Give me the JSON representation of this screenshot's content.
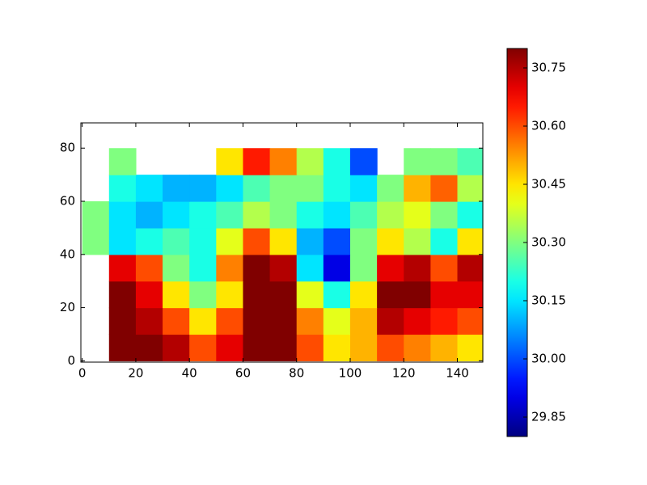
{
  "chart_data": {
    "type": "heatmap",
    "colormap": "jet",
    "x": [
      5,
      15,
      25,
      35,
      45,
      55,
      65,
      75,
      85,
      95,
      105,
      115,
      125,
      135,
      145
    ],
    "y": [
      5,
      15,
      25,
      35,
      45,
      55,
      65,
      75,
      85
    ],
    "z": [
      [
        null,
        30.8,
        30.8,
        30.75,
        30.6,
        30.7,
        30.8,
        30.8,
        30.6,
        30.45,
        30.5,
        30.6,
        30.55,
        30.5,
        30.45
      ],
      [
        null,
        30.8,
        30.75,
        30.6,
        30.45,
        30.6,
        30.8,
        30.8,
        30.55,
        30.4,
        30.5,
        30.75,
        30.7,
        30.65,
        30.6
      ],
      [
        null,
        30.8,
        30.7,
        30.45,
        30.3,
        30.45,
        30.8,
        30.8,
        30.4,
        30.2,
        30.45,
        30.8,
        30.8,
        30.7,
        30.7
      ],
      [
        null,
        30.7,
        30.6,
        30.3,
        30.2,
        30.55,
        30.8,
        30.75,
        30.15,
        29.9,
        30.3,
        30.7,
        30.75,
        30.6,
        30.75
      ],
      [
        30.3,
        30.15,
        30.2,
        30.25,
        30.2,
        30.4,
        30.6,
        30.45,
        30.1,
        30.0,
        30.3,
        30.45,
        30.35,
        30.2,
        30.45
      ],
      [
        30.3,
        30.15,
        30.1,
        30.15,
        30.2,
        30.25,
        30.35,
        30.3,
        30.2,
        30.15,
        30.25,
        30.35,
        30.4,
        30.3,
        30.2
      ],
      [
        null,
        30.2,
        30.15,
        30.1,
        30.1,
        30.15,
        30.25,
        30.3,
        30.3,
        30.2,
        30.15,
        30.3,
        30.5,
        30.58,
        30.35
      ],
      [
        null,
        30.3,
        null,
        null,
        null,
        30.45,
        30.65,
        30.55,
        30.35,
        30.2,
        30.0,
        null,
        30.3,
        30.3,
        30.25
      ],
      [
        null,
        null,
        null,
        null,
        null,
        null,
        null,
        null,
        null,
        null,
        null,
        null,
        null,
        null,
        null
      ]
    ],
    "xlim": [
      -0.5,
      149.5
    ],
    "ylim": [
      -0.5,
      89.5
    ],
    "xticks": [
      0,
      20,
      40,
      60,
      80,
      100,
      120,
      140
    ],
    "yticks": [
      0,
      20,
      40,
      60,
      80
    ],
    "clim": [
      29.8,
      30.8
    ],
    "cticks": [
      29.85,
      {
        "value": 30,
        "label": "30.00"
      },
      30.15,
      {
        "value": 30.3,
        "label": "30.30"
      },
      30.45,
      {
        "value": 30.6,
        "label": "30.60"
      },
      30.75
    ]
  }
}
